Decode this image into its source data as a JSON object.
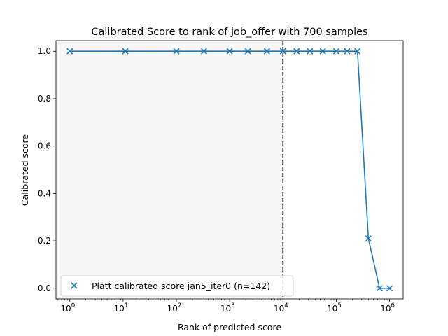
{
  "chart_data": {
    "type": "line",
    "title": "Calibrated Score to rank of job_offer with 700 samples",
    "xlabel": "Rank of predicted score",
    "ylabel": "Calibrated score",
    "xscale": "log",
    "xlim": [
      0.55,
      1800000
    ],
    "ylim": [
      -0.045,
      1.045
    ],
    "xticks": [
      {
        "value": 1,
        "base": "10",
        "exp": "0"
      },
      {
        "value": 10,
        "base": "10",
        "exp": "1"
      },
      {
        "value": 100,
        "base": "10",
        "exp": "2"
      },
      {
        "value": 1000,
        "base": "10",
        "exp": "3"
      },
      {
        "value": 10000,
        "base": "10",
        "exp": "4"
      },
      {
        "value": 100000,
        "base": "10",
        "exp": "5"
      },
      {
        "value": 1000000,
        "base": "10",
        "exp": "6"
      }
    ],
    "yticks": [
      {
        "value": 0.0,
        "label": "0.0"
      },
      {
        "value": 0.2,
        "label": "0.2"
      },
      {
        "value": 0.4,
        "label": "0.4"
      },
      {
        "value": 0.6,
        "label": "0.6"
      },
      {
        "value": 0.8,
        "label": "0.8"
      },
      {
        "value": 1.0,
        "label": "1.0"
      }
    ],
    "grid": false,
    "legend_position": "lower-left",
    "shaded_region": {
      "x_start": 0.55,
      "x_end": 10000,
      "color": "#f7f7f7"
    },
    "vline": {
      "x": 10000,
      "style": "dashed",
      "color": "#000000"
    },
    "series": [
      {
        "name": "Platt calibrated score jan5_iter0 (n=142)",
        "color": "#1f77b4",
        "marker": "x",
        "x": [
          1,
          11,
          100,
          330,
          1000,
          2200,
          5000,
          10000,
          18000,
          32000,
          56000,
          100000,
          160000,
          250000,
          400000,
          650000,
          1000000
        ],
        "y": [
          1.0,
          1.0,
          1.0,
          1.0,
          1.0,
          1.0,
          1.0,
          1.0,
          1.0,
          1.0,
          1.0,
          1.0,
          1.0,
          1.0,
          0.21,
          0.0,
          0.0
        ]
      }
    ]
  }
}
